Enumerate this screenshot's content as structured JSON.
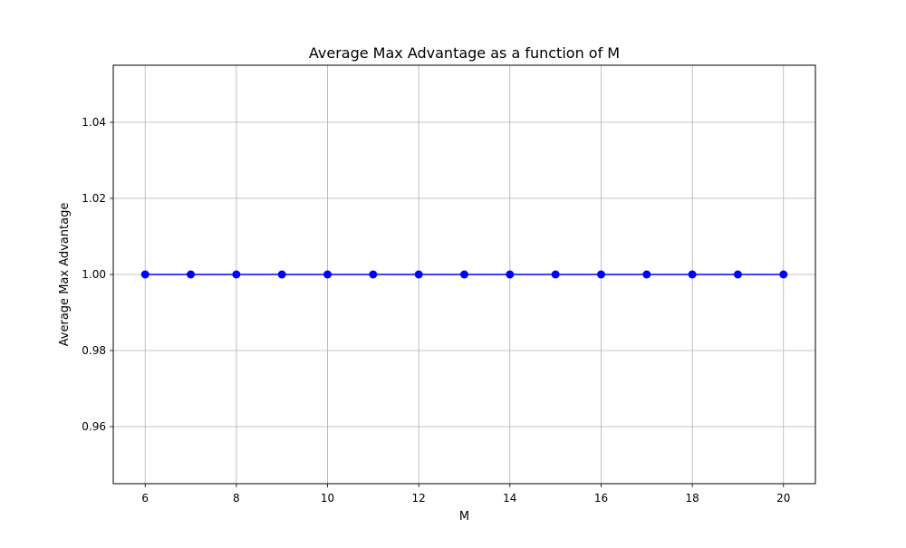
{
  "chart_data": {
    "type": "line",
    "title": "Average Max Advantage as a function of M",
    "xlabel": "M",
    "ylabel": "Average Max Advantage",
    "x": [
      6,
      7,
      8,
      9,
      10,
      11,
      12,
      13,
      14,
      15,
      16,
      17,
      18,
      19,
      20
    ],
    "series": [
      {
        "values": [
          1,
          1,
          1,
          1,
          1,
          1,
          1,
          1,
          1,
          1,
          1,
          1,
          1,
          1,
          1
        ],
        "color": "#0000ff",
        "marker": "circle"
      }
    ],
    "xlim": [
      5.3,
      20.7
    ],
    "ylim": [
      0.945,
      1.055
    ],
    "xticks": [
      6,
      8,
      10,
      12,
      14,
      16,
      18,
      20
    ],
    "xtick_labels": [
      "6",
      "8",
      "10",
      "12",
      "14",
      "16",
      "18",
      "20"
    ],
    "yticks": [
      0.96,
      0.98,
      1.0,
      1.02,
      1.04
    ],
    "ytick_labels": [
      "0.96",
      "0.98",
      "1.00",
      "1.02",
      "1.04"
    ],
    "grid": true,
    "grid_color": "#b0b0b0",
    "legend": false
  }
}
